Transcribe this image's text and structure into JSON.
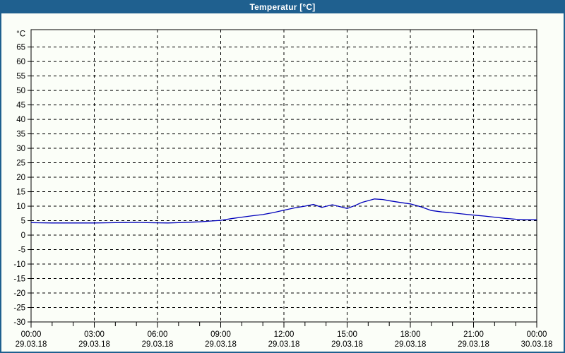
{
  "window": {
    "title": "Temperatur [°C]"
  },
  "colors": {
    "titlebar_bg": "#1f608f",
    "titlebar_text": "#ffffff",
    "window_bg": "#fbfef8",
    "plot_border": "#000000",
    "grid": "#000000",
    "series_line": "#0000bb",
    "label_text": "#000000"
  },
  "chart_data": {
    "type": "line",
    "title": "Temperatur [°C]",
    "y_unit_label": "°C",
    "ylabel": "",
    "xlabel": "",
    "ylim": [
      -30,
      71
    ],
    "xlim_hours": [
      0,
      24
    ],
    "grid_style": "dashed",
    "legend": null,
    "y_tick_labels": [
      65,
      60,
      55,
      50,
      45,
      40,
      35,
      30,
      25,
      20,
      15,
      10,
      5,
      0,
      -5,
      -10,
      -15,
      -20,
      -25,
      -30
    ],
    "x_minor_tick_hours": 1,
    "x_ticks": [
      {
        "hour": 0,
        "time": "00:00",
        "date": "29.03.18"
      },
      {
        "hour": 3,
        "time": "03:00",
        "date": "29.03.18"
      },
      {
        "hour": 6,
        "time": "06:00",
        "date": "29.03.18"
      },
      {
        "hour": 9,
        "time": "09:00",
        "date": "29.03.18"
      },
      {
        "hour": 12,
        "time": "12:00",
        "date": "29.03.18"
      },
      {
        "hour": 15,
        "time": "15:00",
        "date": "29.03.18"
      },
      {
        "hour": 18,
        "time": "18:00",
        "date": "29.03.18"
      },
      {
        "hour": 21,
        "time": "21:00",
        "date": "29.03.18"
      },
      {
        "hour": 24,
        "time": "00:00",
        "date": "30.03.18"
      }
    ],
    "series": [
      {
        "name": "Temperatur",
        "color": "#0000bb",
        "points_hour_degC": [
          [
            0,
            4.3
          ],
          [
            0.5,
            4.25
          ],
          [
            1,
            4.2
          ],
          [
            1.5,
            4.2
          ],
          [
            2,
            4.2
          ],
          [
            2.5,
            4.2
          ],
          [
            3,
            4.2
          ],
          [
            3.5,
            4.25
          ],
          [
            4,
            4.3
          ],
          [
            4.5,
            4.35
          ],
          [
            5,
            4.4
          ],
          [
            5.5,
            4.3
          ],
          [
            6,
            4.25
          ],
          [
            6.5,
            4.2
          ],
          [
            7,
            4.3
          ],
          [
            7.5,
            4.45
          ],
          [
            8,
            4.6
          ],
          [
            8.5,
            4.85
          ],
          [
            9,
            5.1
          ],
          [
            9.5,
            5.7
          ],
          [
            10,
            6.2
          ],
          [
            10.5,
            6.7
          ],
          [
            11,
            7.1
          ],
          [
            11.5,
            7.8
          ],
          [
            12,
            8.6
          ],
          [
            12.5,
            9.4
          ],
          [
            13,
            10.0
          ],
          [
            13.4,
            10.6
          ],
          [
            13.8,
            9.6
          ],
          [
            14.3,
            10.5
          ],
          [
            14.8,
            9.6
          ],
          [
            15,
            9.2
          ],
          [
            15.4,
            10.3
          ],
          [
            15.7,
            11.3
          ],
          [
            16,
            11.9
          ],
          [
            16.3,
            12.5
          ],
          [
            16.7,
            12.3
          ],
          [
            17,
            11.9
          ],
          [
            17.5,
            11.3
          ],
          [
            18,
            10.8
          ],
          [
            18.5,
            9.8
          ],
          [
            19,
            8.5
          ],
          [
            19.5,
            8.0
          ],
          [
            20,
            7.7
          ],
          [
            20.5,
            7.3
          ],
          [
            21,
            6.9
          ],
          [
            21.5,
            6.6
          ],
          [
            22,
            6.2
          ],
          [
            22.5,
            5.8
          ],
          [
            23,
            5.5
          ],
          [
            23.5,
            5.3
          ],
          [
            24,
            5.3
          ]
        ]
      }
    ]
  }
}
